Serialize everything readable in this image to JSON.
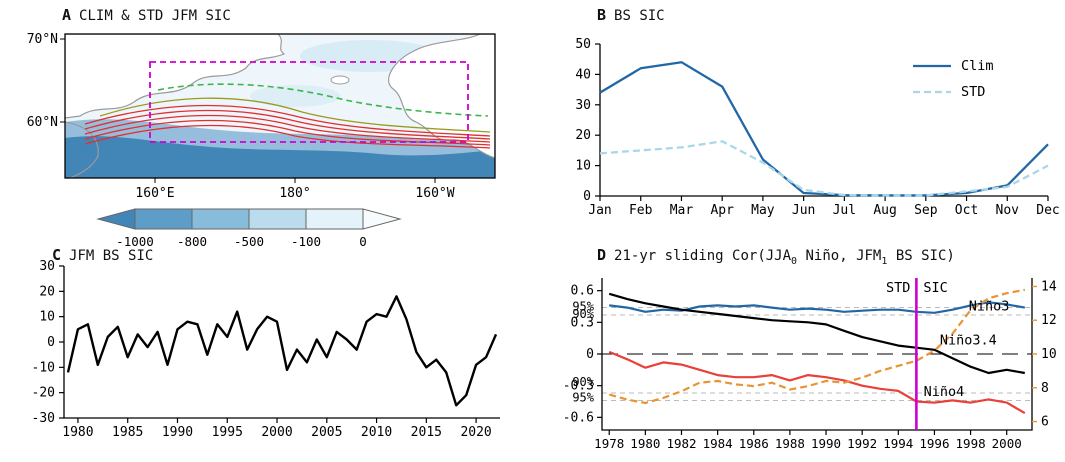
{
  "figure": {
    "panels": [
      {
        "label": "A",
        "title": "CLIM & STD JFM SIC"
      },
      {
        "label": "B",
        "title": "BS SIC"
      },
      {
        "label": "C",
        "title": "JFM BS SIC"
      },
      {
        "label": "D",
        "title": "21-yr sliding Cor(JJA0 Niño, JFM1 BS SIC)"
      }
    ]
  },
  "chart_data": [
    {
      "id": "A",
      "type": "map",
      "title": "CLIM & STD JFM SIC",
      "lat_ticks": [
        "70°N",
        "60°N"
      ],
      "lon_ticks": [
        "160°E",
        "180°",
        "160°W"
      ],
      "colorbar": {
        "ticks": [
          -1000,
          -800,
          -500,
          -100,
          0
        ],
        "arrow_left_color": "#4286b8",
        "segment_colors": [
          "#5e9dc8",
          "#88bcdb",
          "#badcec",
          "#e4f2f9"
        ],
        "arrow_right_color": "#f6fbfd"
      },
      "overlays": {
        "clim_contours_color": "#e03030",
        "std_contour_color": "#3cb54a",
        "region_box_color": "#cf00cf"
      }
    },
    {
      "id": "B",
      "type": "line",
      "title": "BS SIC",
      "categories": [
        "Jan",
        "Feb",
        "Mar",
        "Apr",
        "May",
        "Jun",
        "Jul",
        "Aug",
        "Sep",
        "Oct",
        "Nov",
        "Dec"
      ],
      "series": [
        {
          "name": "Clim",
          "color": "#2267a5",
          "style": "solid",
          "values": [
            34,
            42,
            44,
            36,
            12,
            1,
            0.3,
            0.2,
            0.2,
            1,
            3.5,
            17
          ]
        },
        {
          "name": "STD",
          "color": "#a8d8e8",
          "style": "dashed",
          "values": [
            14,
            15,
            16,
            18,
            11,
            2,
            0.3,
            0.2,
            0.2,
            1.5,
            3,
            10
          ]
        }
      ],
      "ylim": [
        0,
        50
      ],
      "yticks": [
        0,
        10,
        20,
        30,
        40,
        50
      ],
      "legend_position": "top-right"
    },
    {
      "id": "C",
      "type": "line",
      "title": "JFM BS SIC",
      "x_start": 1979,
      "x_end": 2022,
      "values": [
        -12,
        5,
        7,
        -9,
        2,
        6,
        -6,
        3,
        -2,
        4,
        -9,
        5,
        8,
        7,
        -5,
        7,
        2,
        12,
        -3,
        5,
        10,
        8,
        -11,
        -3,
        -8,
        1,
        -6,
        4,
        1,
        -3,
        8,
        11,
        10,
        18,
        9,
        -4,
        -10,
        -7,
        -12,
        -25,
        -21,
        -9,
        -6,
        3
      ],
      "line_color": "#000000",
      "ylim": [
        -30,
        30
      ],
      "yticks": [
        -30,
        -20,
        -10,
        0,
        10,
        20,
        30
      ],
      "xticks": [
        1980,
        1985,
        1990,
        1995,
        2000,
        2005,
        2010,
        2015,
        2020
      ]
    },
    {
      "id": "D",
      "type": "line",
      "title": "21-yr sliding Cor(JJA0 Niño, JFM1 BS SIC)",
      "title_parts": {
        "p1": "21-yr sliding Cor(JJA",
        "sub1": "0",
        "p2": " Niño, JFM",
        "sub2": "1",
        "p3": " BS SIC)"
      },
      "x_start": 1978,
      "x_end": 2001,
      "series": [
        {
          "name": "Niño3",
          "color": "#2267a5",
          "style": "solid",
          "axis": "left",
          "values": [
            0.46,
            0.44,
            0.4,
            0.42,
            0.41,
            0.45,
            0.46,
            0.45,
            0.46,
            0.44,
            0.42,
            0.43,
            0.42,
            0.4,
            0.41,
            0.42,
            0.42,
            0.4,
            0.39,
            0.42,
            0.46,
            0.49,
            0.47,
            0.44
          ]
        },
        {
          "name": "Niño3.4",
          "color": "#000000",
          "style": "solid",
          "axis": "left",
          "values": [
            0.57,
            0.52,
            0.48,
            0.45,
            0.42,
            0.4,
            0.38,
            0.36,
            0.34,
            0.32,
            0.31,
            0.3,
            0.28,
            0.22,
            0.16,
            0.12,
            0.08,
            0.06,
            0.04,
            -0.04,
            -0.12,
            -0.18,
            -0.15,
            -0.18
          ]
        },
        {
          "name": "Niño4",
          "color": "#e8403a",
          "style": "solid",
          "axis": "left",
          "values": [
            0.02,
            -0.05,
            -0.13,
            -0.08,
            -0.1,
            -0.15,
            -0.2,
            -0.22,
            -0.22,
            -0.2,
            -0.25,
            -0.2,
            -0.22,
            -0.25,
            -0.3,
            -0.33,
            -0.35,
            -0.45,
            -0.46,
            -0.44,
            -0.46,
            -0.43,
            -0.46,
            -0.56
          ]
        },
        {
          "name": "SIC STD",
          "color": "#e89334",
          "style": "dashed",
          "axis": "right",
          "values": [
            7.6,
            7.3,
            7.1,
            7.4,
            7.8,
            8.3,
            8.4,
            8.2,
            8.1,
            8.3,
            7.9,
            8.1,
            8.4,
            8.3,
            8.6,
            9.0,
            9.3,
            9.6,
            10.2,
            11.2,
            12.6,
            13.3,
            13.6,
            13.8
          ]
        }
      ],
      "ylim_left": [
        -0.72,
        0.72
      ],
      "yticks_left": [
        0.6,
        0.3,
        0,
        -0.3,
        -0.6
      ],
      "ylim_right": [
        5.5,
        14.5
      ],
      "yticks_right": [
        14,
        12,
        10,
        8,
        6
      ],
      "xticks": [
        1978,
        1980,
        1982,
        1984,
        1986,
        1988,
        1990,
        1992,
        1994,
        1996,
        1998,
        2000
      ],
      "significance": {
        "line_color": "#bbbbbb",
        "levels": [
          {
            "label": "95%",
            "value": 0.44
          },
          {
            "label": "90%",
            "value": 0.37
          },
          {
            "label": "90%",
            "value": -0.37
          },
          {
            "label": "95%",
            "value": -0.44
          }
        ]
      },
      "zero_line": true,
      "vline": {
        "x": 1995,
        "color": "#cf00cf",
        "label_left": "STD",
        "label_right": "SIC"
      },
      "annotations": [
        {
          "text": "Niño3",
          "x": 1997.9,
          "y": 0.41
        },
        {
          "text": "Niño3.4",
          "x": 1996.3,
          "y": 0.09
        },
        {
          "text": "Niño4",
          "x": 1995.4,
          "y": -0.4
        }
      ]
    }
  ]
}
